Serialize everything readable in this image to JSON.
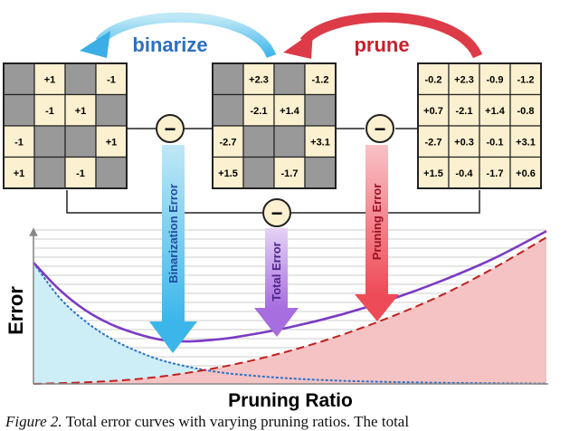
{
  "labels": {
    "binarize": "binarize",
    "prune": "prune",
    "minus": "−",
    "binarization_error": "Binarization Error",
    "total_error": "Total Error",
    "pruning_error": "Pruning Error",
    "y_axis": "Error",
    "x_axis": "Pruning Ratio"
  },
  "caption": {
    "figure_label": "Figure 2.",
    "text": " Total error curves with varying pruning ratios. The total"
  },
  "matrices": {
    "binarized": [
      [
        "",
        "+1",
        "",
        "-1"
      ],
      [
        "",
        "-1",
        "+1",
        ""
      ],
      [
        "-1",
        "",
        "",
        "+1"
      ],
      [
        "+1",
        "",
        "-1",
        ""
      ]
    ],
    "pruned": [
      [
        "",
        "+2.3",
        "",
        "-1.2"
      ],
      [
        "",
        "-2.1",
        "+1.4",
        ""
      ],
      [
        "-2.7",
        "",
        "",
        "+3.1"
      ],
      [
        "+1.5",
        "",
        "-1.7",
        ""
      ]
    ],
    "original": [
      [
        "-0.2",
        "+2.3",
        "-0.9",
        "-1.2"
      ],
      [
        "+0.7",
        "-2.1",
        "+1.4",
        "-0.8"
      ],
      [
        "-2.7",
        "+0.3",
        "-0.1",
        "+3.1"
      ],
      [
        "+1.5",
        "-0.4",
        "-1.7",
        "+0.6"
      ]
    ]
  },
  "colors": {
    "cell_kept": "#fbf0cf",
    "cell_pruned": "#999999",
    "binarize_arrow": "#3aaee5",
    "prune_arrow": "#dd3b48",
    "binarization_curve": "#2c72c4",
    "pruning_curve": "#c02020",
    "total_curve": "#7b3bc4",
    "binarization_fill": "#cdeef7",
    "pruning_fill": "#f6c3c4"
  },
  "chart_data": {
    "type": "line",
    "xlabel": "Pruning Ratio",
    "ylabel": "Error",
    "xlim": [
      0,
      1
    ],
    "ylim": [
      0,
      1
    ],
    "grid": true,
    "series": [
      {
        "name": "Binarization Error",
        "style": "dotted",
        "x": [
          0,
          0.05,
          0.1,
          0.15,
          0.2,
          0.25,
          0.3,
          0.35,
          0.4,
          0.5,
          0.6,
          0.7,
          0.8,
          0.9,
          1.0
        ],
        "y": [
          0.77,
          0.55,
          0.4,
          0.29,
          0.21,
          0.15,
          0.11,
          0.08,
          0.06,
          0.035,
          0.02,
          0.012,
          0.007,
          0.004,
          0.002
        ]
      },
      {
        "name": "Pruning Error",
        "style": "dashed",
        "x": [
          0,
          0.1,
          0.2,
          0.3,
          0.4,
          0.5,
          0.6,
          0.7,
          0.8,
          0.9,
          1.0
        ],
        "y": [
          0.0,
          0.01,
          0.03,
          0.07,
          0.13,
          0.21,
          0.31,
          0.43,
          0.57,
          0.74,
          0.93
        ]
      },
      {
        "name": "Total Error",
        "style": "solid",
        "x": [
          0,
          0.05,
          0.1,
          0.15,
          0.2,
          0.25,
          0.3,
          0.35,
          0.4,
          0.5,
          0.6,
          0.7,
          0.8,
          0.9,
          1.0
        ],
        "y": [
          0.77,
          0.6,
          0.47,
          0.38,
          0.32,
          0.28,
          0.27,
          0.28,
          0.3,
          0.36,
          0.44,
          0.54,
          0.66,
          0.8,
          0.97
        ]
      }
    ]
  }
}
